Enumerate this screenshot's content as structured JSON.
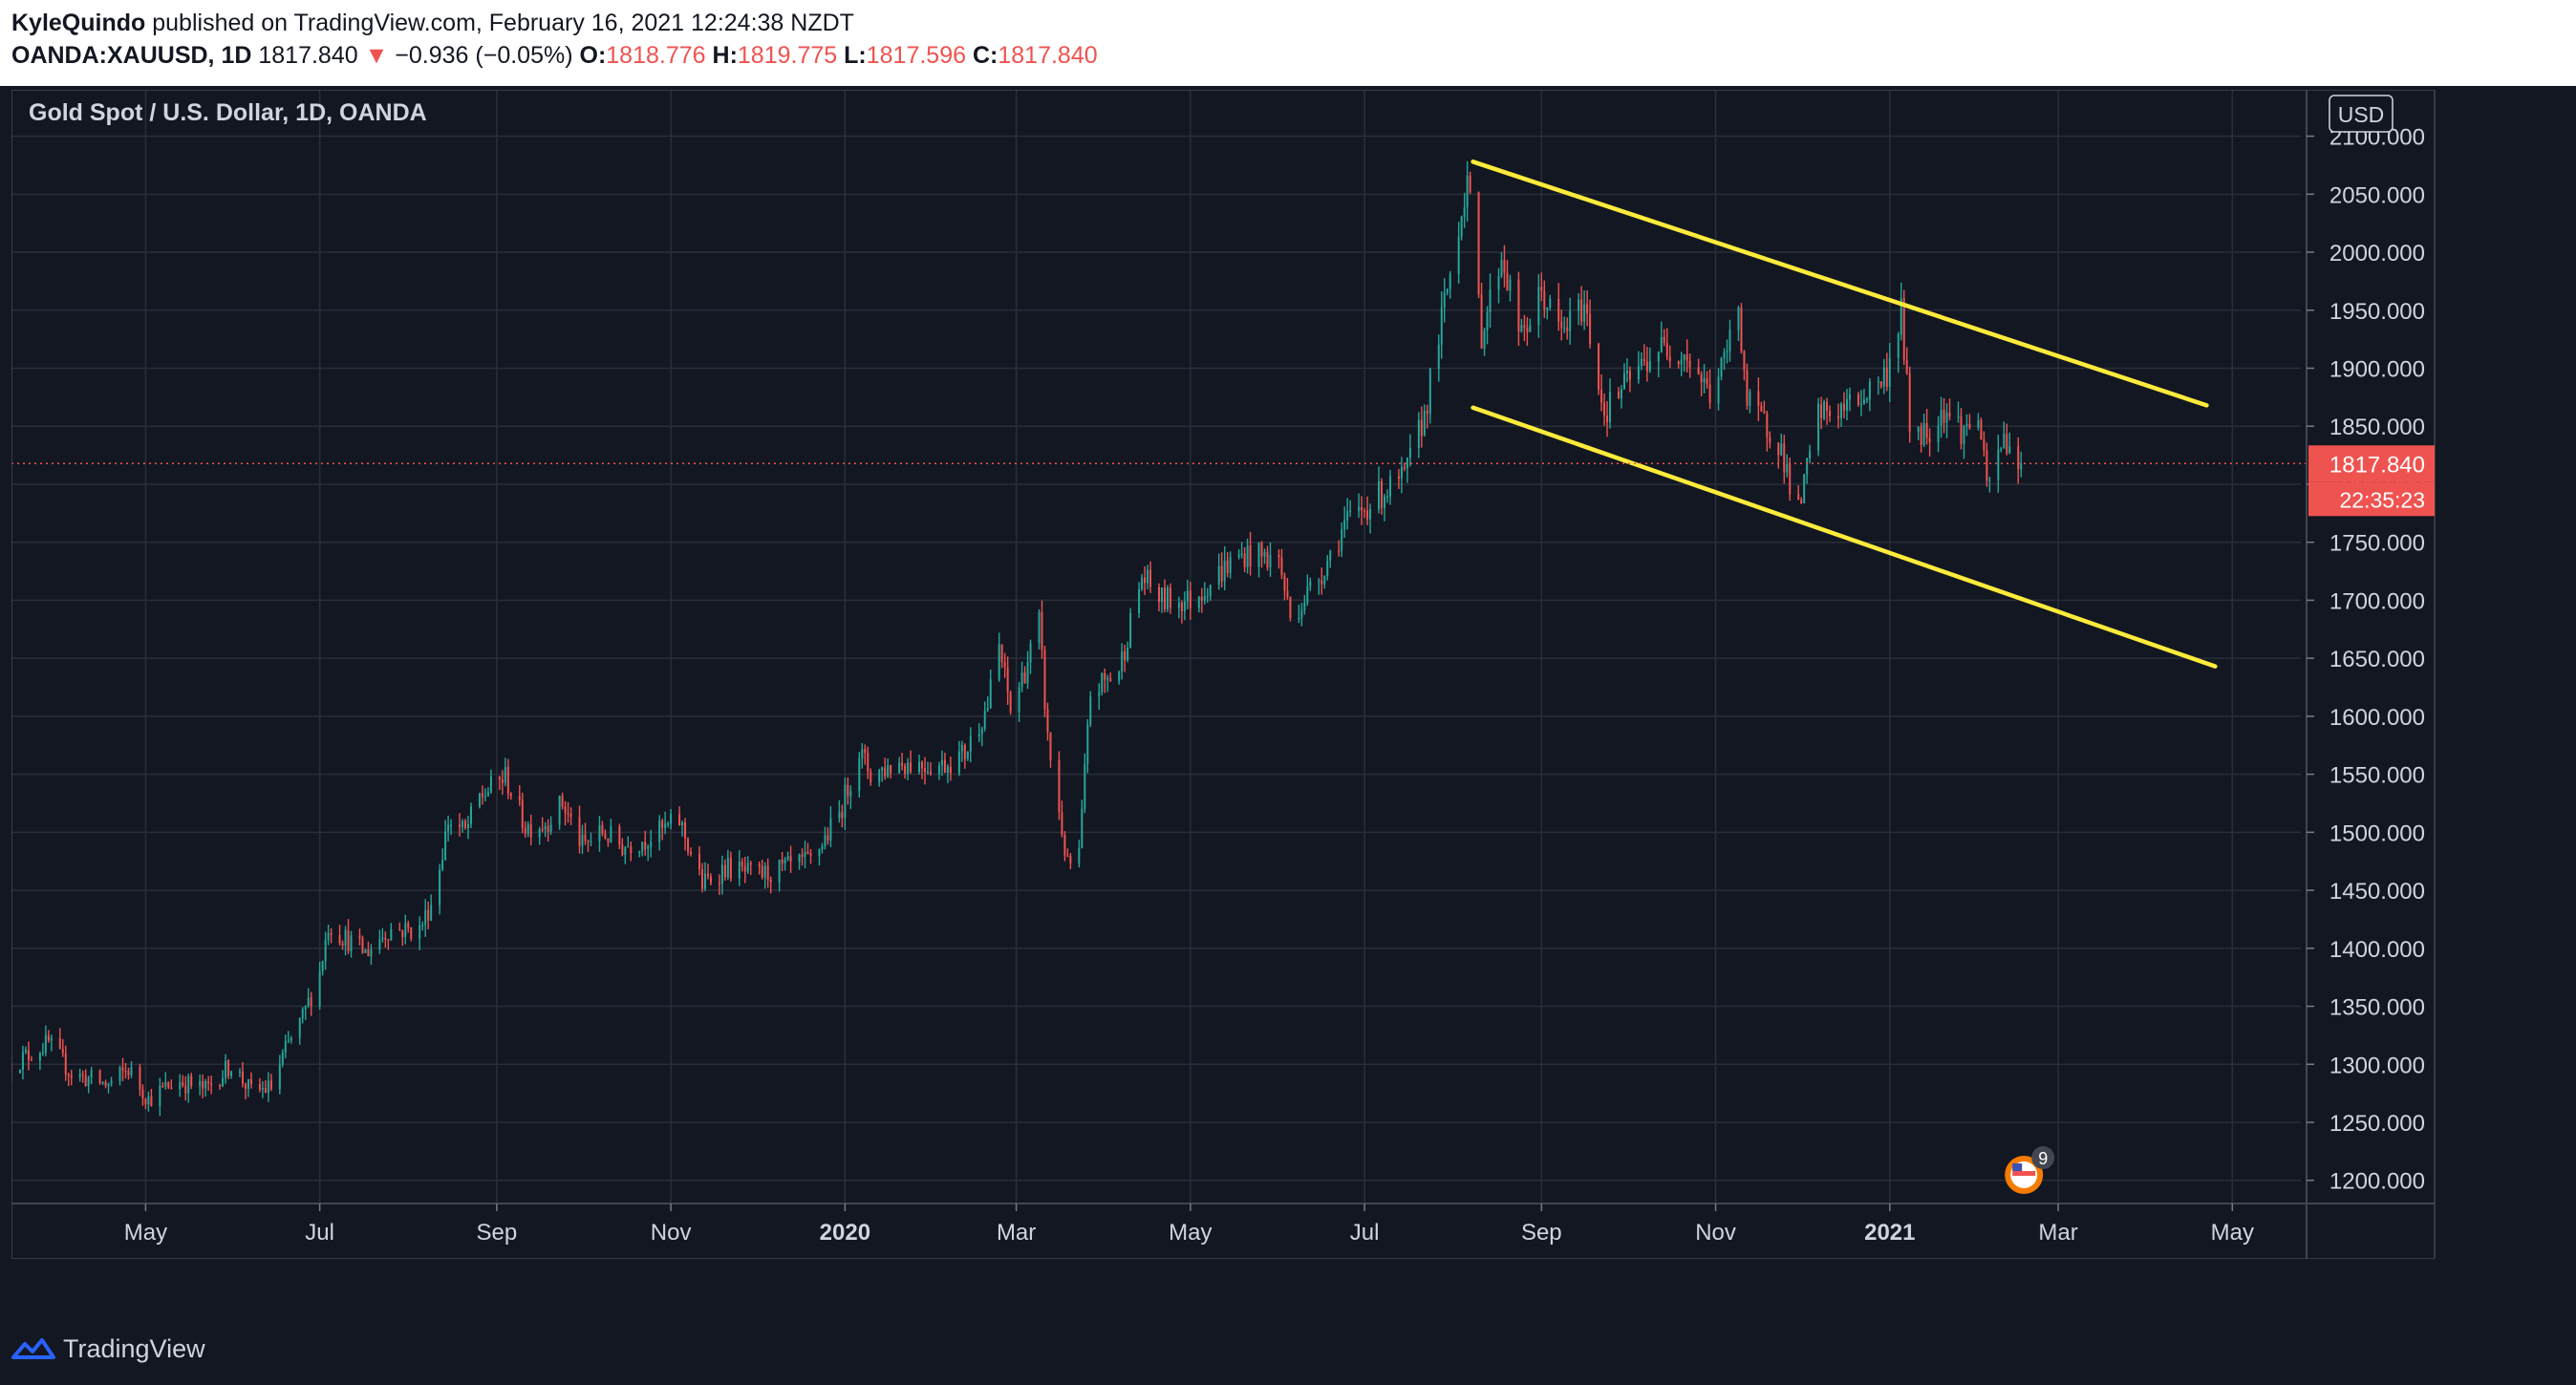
{
  "header": {
    "author": "KyleQuindo",
    "published_text": " published on TradingView.com, February 16, 2021 12:24:38 NZDT",
    "symbol": "OANDA:XAUUSD, 1D",
    "last": "1817.840",
    "change_arrow": "▼",
    "change": "−0.936 (−0.05%)",
    "open_label": "O:",
    "open": "1818.776",
    "high_label": "H:",
    "high": "1819.775",
    "low_label": "L:",
    "low": "1817.596",
    "close_label": "C:",
    "close": "1817.840"
  },
  "footer": {
    "brand": "TradingView"
  },
  "colors": {
    "background": "#131722",
    "grid": "#2a2e39",
    "up": "#26a69a",
    "down": "#ef5350",
    "trendline": "#ffeb3b",
    "price_tag": "#ef5350",
    "text": "#d1d4dc"
  },
  "chart_data": {
    "type": "candlestick",
    "title": "Gold Spot / U.S. Dollar, 1D, OANDA",
    "currency": "USD",
    "ylim": [
      1180,
      2140
    ],
    "y_ticks": [
      1200,
      1250,
      1300,
      1350,
      1400,
      1450,
      1500,
      1550,
      1600,
      1650,
      1700,
      1750,
      1800,
      1850,
      1900,
      1950,
      2000,
      2050,
      2100
    ],
    "y_tick_labels": [
      "1200.000",
      "1250.000",
      "1300.000",
      "1350.000",
      "1400.000",
      "1450.000",
      "1500.000",
      "1550.000",
      "1600.000",
      "1650.000",
      "1700.000",
      "1750.000",
      "1800.000",
      "1850.000",
      "1900.000",
      "1950.000",
      "2000.000",
      "2050.000",
      "2100.000"
    ],
    "x_range": [
      "2019-03-15",
      "2021-05-25"
    ],
    "x_ticks": [
      {
        "date": "2019-05-01",
        "label": "May",
        "bold": false
      },
      {
        "date": "2019-07-01",
        "label": "Jul",
        "bold": false
      },
      {
        "date": "2019-09-01",
        "label": "Sep",
        "bold": false
      },
      {
        "date": "2019-11-01",
        "label": "Nov",
        "bold": false
      },
      {
        "date": "2020-01-01",
        "label": "2020",
        "bold": true
      },
      {
        "date": "2020-03-01",
        "label": "Mar",
        "bold": false
      },
      {
        "date": "2020-05-01",
        "label": "May",
        "bold": false
      },
      {
        "date": "2020-07-01",
        "label": "Jul",
        "bold": false
      },
      {
        "date": "2020-09-01",
        "label": "Sep",
        "bold": false
      },
      {
        "date": "2020-11-01",
        "label": "Nov",
        "bold": false
      },
      {
        "date": "2021-01-01",
        "label": "2021",
        "bold": true
      },
      {
        "date": "2021-03-01",
        "label": "Mar",
        "bold": false
      },
      {
        "date": "2021-05-01",
        "label": "May",
        "bold": false
      }
    ],
    "price_path": [
      [
        "2019-03-15",
        1300
      ],
      [
        "2019-03-28",
        1318
      ],
      [
        "2019-04-05",
        1292
      ],
      [
        "2019-04-18",
        1282
      ],
      [
        "2019-04-25",
        1296
      ],
      [
        "2019-05-02",
        1270
      ],
      [
        "2019-05-12",
        1286
      ],
      [
        "2019-05-22",
        1278
      ],
      [
        "2019-05-31",
        1300
      ],
      [
        "2019-06-07",
        1276
      ],
      [
        "2019-06-14",
        1280
      ],
      [
        "2019-06-19",
        1312
      ],
      [
        "2019-06-25",
        1340
      ],
      [
        "2019-07-01",
        1380
      ],
      [
        "2019-07-04",
        1420
      ],
      [
        "2019-07-12",
        1405
      ],
      [
        "2019-07-17",
        1396
      ],
      [
        "2019-07-25",
        1416
      ],
      [
        "2019-08-05",
        1416
      ],
      [
        "2019-08-10",
        1445
      ],
      [
        "2019-08-15",
        1510
      ],
      [
        "2019-08-21",
        1500
      ],
      [
        "2019-08-26",
        1530
      ],
      [
        "2019-09-04",
        1548
      ],
      [
        "2019-09-11",
        1505
      ],
      [
        "2019-09-18",
        1508
      ],
      [
        "2019-09-24",
        1525
      ],
      [
        "2019-10-01",
        1488
      ],
      [
        "2019-10-08",
        1500
      ],
      [
        "2019-10-15",
        1488
      ],
      [
        "2019-10-25",
        1496
      ],
      [
        "2019-11-04",
        1510
      ],
      [
        "2019-11-12",
        1455
      ],
      [
        "2019-11-20",
        1470
      ],
      [
        "2019-12-01",
        1462
      ],
      [
        "2019-12-10",
        1468
      ],
      [
        "2019-12-20",
        1475
      ],
      [
        "2019-12-30",
        1515
      ],
      [
        "2020-01-06",
        1570
      ],
      [
        "2020-01-10",
        1550
      ],
      [
        "2020-01-20",
        1560
      ],
      [
        "2020-02-04",
        1558
      ],
      [
        "2020-02-12",
        1568
      ],
      [
        "2020-02-20",
        1610
      ],
      [
        "2020-02-24",
        1660
      ],
      [
        "2020-02-28",
        1605
      ],
      [
        "2020-03-04",
        1640
      ],
      [
        "2020-03-09",
        1680
      ],
      [
        "2020-03-12",
        1580
      ],
      [
        "2020-03-19",
        1470
      ],
      [
        "2020-03-23",
        1480
      ],
      [
        "2020-03-27",
        1620
      ],
      [
        "2020-04-06",
        1640
      ],
      [
        "2020-04-14",
        1720
      ],
      [
        "2020-04-21",
        1700
      ],
      [
        "2020-05-01",
        1700
      ],
      [
        "2020-05-14",
        1730
      ],
      [
        "2020-05-20",
        1740
      ],
      [
        "2020-06-01",
        1735
      ],
      [
        "2020-06-05",
        1685
      ],
      [
        "2020-06-15",
        1720
      ],
      [
        "2020-06-24",
        1765
      ],
      [
        "2020-07-06",
        1790
      ],
      [
        "2020-07-15",
        1805
      ],
      [
        "2020-07-22",
        1860
      ],
      [
        "2020-07-29",
        1955
      ],
      [
        "2020-08-06",
        2065
      ],
      [
        "2020-08-11",
        1930
      ],
      [
        "2020-08-18",
        1998
      ],
      [
        "2020-08-25",
        1925
      ],
      [
        "2020-09-01",
        1965
      ],
      [
        "2020-09-08",
        1930
      ],
      [
        "2020-09-16",
        1955
      ],
      [
        "2020-09-23",
        1862
      ],
      [
        "2020-10-01",
        1888
      ],
      [
        "2020-10-12",
        1918
      ],
      [
        "2020-10-21",
        1915
      ],
      [
        "2020-10-30",
        1878
      ],
      [
        "2020-11-04",
        1905
      ],
      [
        "2020-11-09",
        1955
      ],
      [
        "2020-11-12",
        1870
      ],
      [
        "2020-11-23",
        1838
      ],
      [
        "2020-11-30",
        1775
      ],
      [
        "2020-12-07",
        1860
      ],
      [
        "2020-12-16",
        1865
      ],
      [
        "2020-12-22",
        1875
      ],
      [
        "2020-12-31",
        1895
      ],
      [
        "2021-01-05",
        1950
      ],
      [
        "2021-01-08",
        1850
      ],
      [
        "2021-01-14",
        1845
      ],
      [
        "2021-01-20",
        1866
      ],
      [
        "2021-01-27",
        1845
      ],
      [
        "2021-02-01",
        1860
      ],
      [
        "2021-02-04",
        1795
      ],
      [
        "2021-02-10",
        1840
      ],
      [
        "2021-02-16",
        1818
      ]
    ],
    "trendlines": [
      {
        "name": "upper",
        "from": [
          "2020-08-08",
          2078
        ],
        "to": [
          "2021-04-22",
          1868
        ]
      },
      {
        "name": "lower",
        "from": [
          "2020-08-08",
          1866
        ],
        "to": [
          "2021-04-25",
          1643
        ]
      }
    ],
    "last_price": 1817.84,
    "last_price_label": "1817.840",
    "countdown": "22:35:23",
    "event_badge": "9"
  }
}
